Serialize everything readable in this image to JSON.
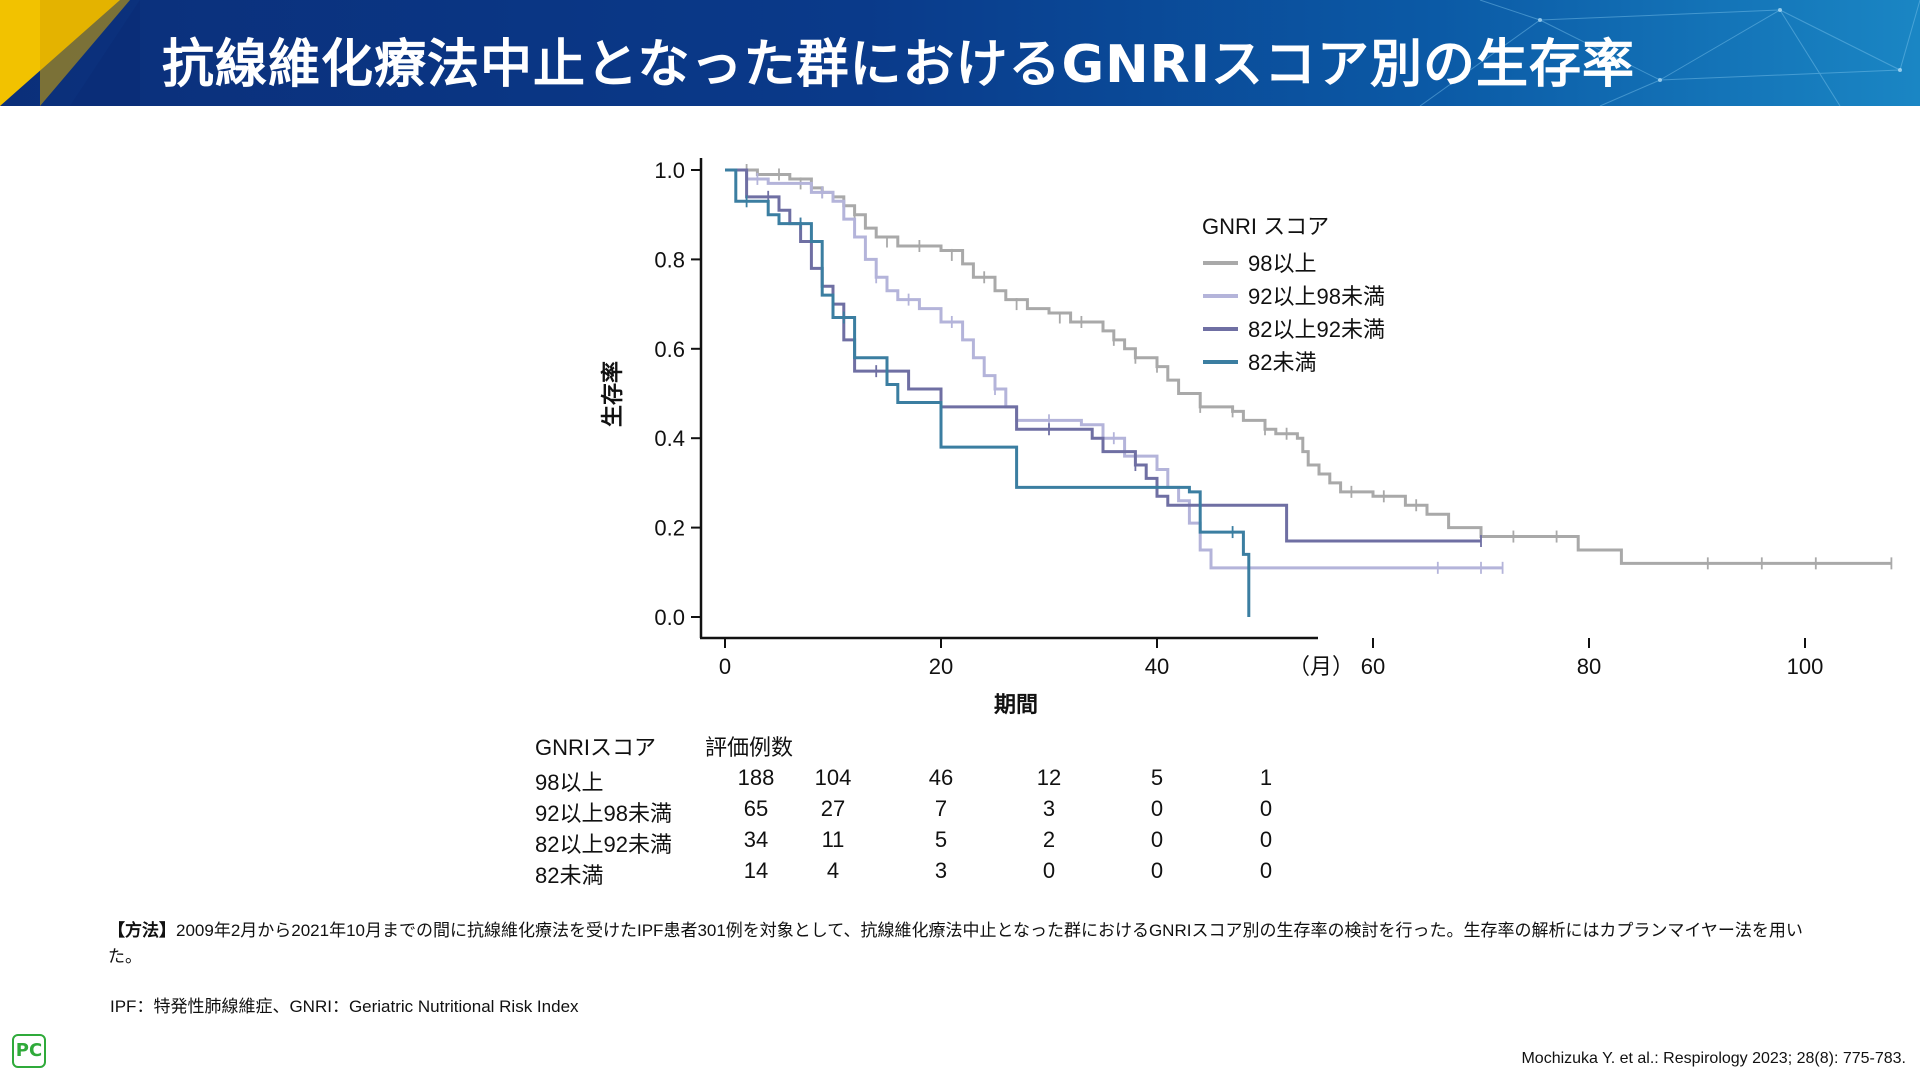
{
  "header": {
    "title": "抗線維化療法中止となった群におけるGNRIスコア別の生存率"
  },
  "logo": {
    "icon": "pc-logo-icon",
    "text": "PC",
    "color": "#2faa3a"
  },
  "chart_data": {
    "type": "line",
    "step": true,
    "ylabel": "生存率",
    "xlabel": "期間",
    "x_unit": "（月）",
    "xlim": [
      0,
      110
    ],
    "ylim": [
      0,
      1.0
    ],
    "xticks": [
      0,
      20,
      40,
      60,
      80,
      100
    ],
    "yticks": [
      "0.0",
      "0.2",
      "0.4",
      "0.6",
      "0.8",
      "1.0"
    ],
    "legend_title": "GNRI スコア",
    "legend_position": "top-right",
    "series": [
      {
        "name": "98以上",
        "color": "#a9a9a9",
        "points": [
          [
            0,
            1.0
          ],
          [
            3,
            0.99
          ],
          [
            6,
            0.98
          ],
          [
            8,
            0.96
          ],
          [
            9,
            0.95
          ],
          [
            10,
            0.94
          ],
          [
            11,
            0.92
          ],
          [
            12,
            0.9
          ],
          [
            13,
            0.87
          ],
          [
            14,
            0.85
          ],
          [
            16,
            0.83
          ],
          [
            20,
            0.82
          ],
          [
            22,
            0.79
          ],
          [
            23,
            0.76
          ],
          [
            25,
            0.73
          ],
          [
            26,
            0.71
          ],
          [
            28,
            0.69
          ],
          [
            30,
            0.68
          ],
          [
            32,
            0.66
          ],
          [
            35,
            0.64
          ],
          [
            36,
            0.62
          ],
          [
            37,
            0.6
          ],
          [
            38,
            0.58
          ],
          [
            40,
            0.56
          ],
          [
            41,
            0.53
          ],
          [
            42,
            0.5
          ],
          [
            44,
            0.47
          ],
          [
            47,
            0.46
          ],
          [
            48,
            0.44
          ],
          [
            50,
            0.42
          ],
          [
            51,
            0.41
          ],
          [
            53,
            0.4
          ],
          [
            53.5,
            0.37
          ],
          [
            54,
            0.34
          ],
          [
            55,
            0.32
          ],
          [
            56,
            0.3
          ],
          [
            57,
            0.28
          ],
          [
            60,
            0.27
          ],
          [
            63,
            0.25
          ],
          [
            65,
            0.23
          ],
          [
            67,
            0.2
          ],
          [
            70,
            0.18
          ],
          [
            79,
            0.15
          ],
          [
            83,
            0.12
          ],
          [
            108,
            0.12
          ]
        ],
        "censors": [
          [
            2,
            1.0
          ],
          [
            5,
            0.99
          ],
          [
            7,
            0.97
          ],
          [
            9,
            0.95
          ],
          [
            12,
            0.9
          ],
          [
            15,
            0.84
          ],
          [
            18,
            0.83
          ],
          [
            21,
            0.81
          ],
          [
            24,
            0.76
          ],
          [
            27,
            0.7
          ],
          [
            31,
            0.67
          ],
          [
            33,
            0.66
          ],
          [
            36,
            0.62
          ],
          [
            38,
            0.58
          ],
          [
            40,
            0.56
          ],
          [
            44,
            0.47
          ],
          [
            47,
            0.46
          ],
          [
            50,
            0.42
          ],
          [
            52,
            0.41
          ],
          [
            58,
            0.28
          ],
          [
            61,
            0.27
          ],
          [
            64,
            0.25
          ],
          [
            73,
            0.18
          ],
          [
            77,
            0.18
          ],
          [
            91,
            0.12
          ],
          [
            96,
            0.12
          ],
          [
            101,
            0.12
          ],
          [
            108,
            0.12
          ]
        ]
      },
      {
        "name": "92以上98未満",
        "color": "#b4b4da",
        "points": [
          [
            0,
            1.0
          ],
          [
            2,
            0.98
          ],
          [
            4,
            0.97
          ],
          [
            8,
            0.95
          ],
          [
            10,
            0.93
          ],
          [
            11,
            0.89
          ],
          [
            12,
            0.85
          ],
          [
            13,
            0.8
          ],
          [
            14,
            0.76
          ],
          [
            15,
            0.73
          ],
          [
            16,
            0.71
          ],
          [
            18,
            0.69
          ],
          [
            20,
            0.66
          ],
          [
            22,
            0.62
          ],
          [
            23,
            0.58
          ],
          [
            24,
            0.54
          ],
          [
            25,
            0.51
          ],
          [
            26,
            0.47
          ],
          [
            27,
            0.44
          ],
          [
            33,
            0.43
          ],
          [
            35,
            0.4
          ],
          [
            37,
            0.36
          ],
          [
            40,
            0.33
          ],
          [
            41,
            0.29
          ],
          [
            42,
            0.26
          ],
          [
            43,
            0.21
          ],
          [
            44,
            0.15
          ],
          [
            45,
            0.11
          ],
          [
            72,
            0.11
          ]
        ],
        "censors": [
          [
            3,
            0.98
          ],
          [
            9,
            0.95
          ],
          [
            14,
            0.76
          ],
          [
            17,
            0.71
          ],
          [
            21,
            0.66
          ],
          [
            25,
            0.51
          ],
          [
            30,
            0.44
          ],
          [
            36,
            0.4
          ],
          [
            66,
            0.11
          ],
          [
            70,
            0.11
          ],
          [
            72,
            0.11
          ]
        ]
      },
      {
        "name": "82以上92未満",
        "color": "#6f6fa3",
        "points": [
          [
            0,
            1.0
          ],
          [
            2,
            0.94
          ],
          [
            5,
            0.91
          ],
          [
            6,
            0.88
          ],
          [
            7,
            0.84
          ],
          [
            8,
            0.78
          ],
          [
            9,
            0.74
          ],
          [
            10,
            0.7
          ],
          [
            11,
            0.62
          ],
          [
            12,
            0.55
          ],
          [
            17,
            0.51
          ],
          [
            20,
            0.47
          ],
          [
            27,
            0.42
          ],
          [
            34,
            0.4
          ],
          [
            35,
            0.37
          ],
          [
            38,
            0.34
          ],
          [
            39,
            0.31
          ],
          [
            40,
            0.27
          ],
          [
            41,
            0.25
          ],
          [
            52,
            0.17
          ],
          [
            70,
            0.17
          ]
        ],
        "censors": [
          [
            4,
            0.94
          ],
          [
            7,
            0.88
          ],
          [
            8,
            0.84
          ],
          [
            10,
            0.7
          ],
          [
            14,
            0.55
          ],
          [
            30,
            0.42
          ],
          [
            38,
            0.34
          ],
          [
            70,
            0.17
          ]
        ]
      },
      {
        "name": "82未満",
        "color": "#3b7ea1",
        "points": [
          [
            0,
            1.0
          ],
          [
            1,
            0.93
          ],
          [
            4,
            0.9
          ],
          [
            5,
            0.88
          ],
          [
            8,
            0.84
          ],
          [
            9,
            0.72
          ],
          [
            10,
            0.67
          ],
          [
            12,
            0.58
          ],
          [
            15,
            0.52
          ],
          [
            16,
            0.48
          ],
          [
            20,
            0.38
          ],
          [
            27,
            0.29
          ],
          [
            43,
            0.28
          ],
          [
            44,
            0.19
          ],
          [
            48,
            0.14
          ],
          [
            48.5,
            0.0
          ]
        ],
        "censors": [
          [
            2,
            0.93
          ],
          [
            7,
            0.88
          ],
          [
            11,
            0.67
          ],
          [
            47,
            0.19
          ]
        ]
      }
    ]
  },
  "risk_table": {
    "header_label": "GNRIスコア",
    "header_value": "評価例数",
    "rows": [
      {
        "label": "98以上",
        "values": [
          "188",
          "104",
          "46",
          "12",
          "5",
          "1"
        ]
      },
      {
        "label": "92以上98未満",
        "values": [
          "65",
          "27",
          "7",
          "3",
          "0",
          "0"
        ]
      },
      {
        "label": "82以上92未満",
        "values": [
          "34",
          "11",
          "5",
          "2",
          "0",
          "0"
        ]
      },
      {
        "label": "82未満",
        "values": [
          "14",
          "4",
          "3",
          "0",
          "0",
          "0"
        ]
      }
    ]
  },
  "footnotes": {
    "method_label": "【方法】",
    "method_text": "2009年2月から2021年10月までの間に抗線維化療法を受けたIPF患者301例を対象として、抗線維化療法中止となった群におけるGNRIスコア別の生存率の検討を行った。生存率の解析にはカプランマイヤー法を用いた。",
    "abbreviations": "IPF：特発性肺線維症、GNRI：Geriatric Nutritional Risk Index",
    "citation": "Mochizuka Y. et al.: Respirology 2023; 28(8): 775-783."
  }
}
